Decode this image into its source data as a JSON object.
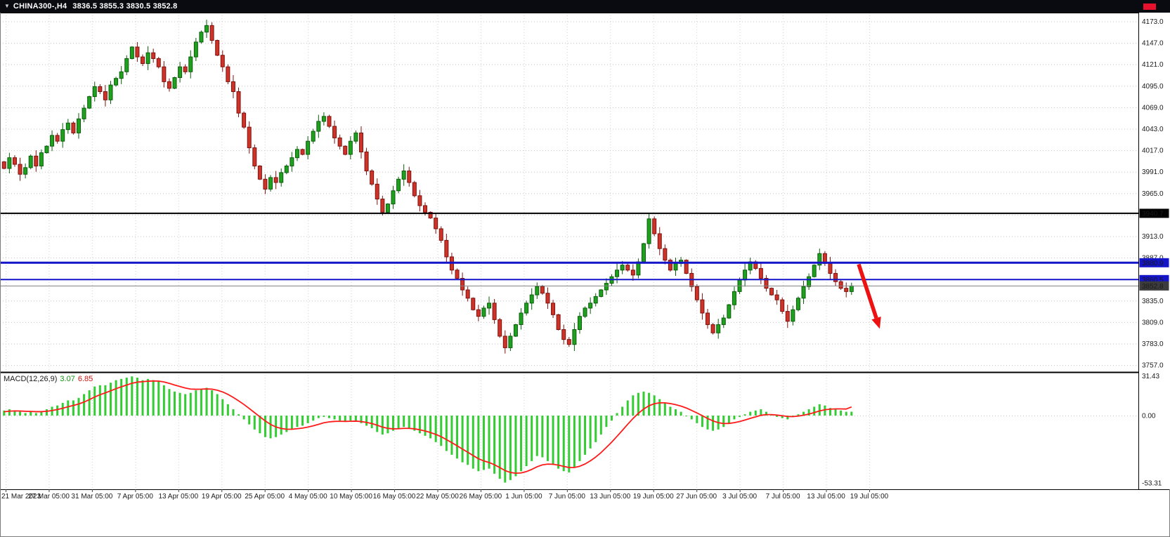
{
  "header": {
    "symbol_period": "CHINA300-,H4",
    "ohlc": "3836.5 3855.3 3830.5 3852.8"
  },
  "macd_header": {
    "name": "MACD(12,26,9)",
    "value_main": "3.07",
    "value_signal": "6.85"
  },
  "colors": {
    "bull": "#1fa11f",
    "bull_stroke": "#0a5d0a",
    "bear": "#cd3328",
    "bear_stroke": "#7e120e",
    "grid": "#c4c4c4",
    "vgrid": "#d2d2d2",
    "hist": "#33cc33",
    "signal": "#ff1a1a",
    "arrow": "#ee1111",
    "axis_text": "#333333",
    "badge_text": "#ffffff",
    "border": "#000000"
  },
  "chart_data": [
    {
      "type": "candlestick",
      "symbol": "CHINA300-",
      "period": "H4",
      "ohlc_display": {
        "open": 3836.5,
        "high": 3855.3,
        "low": 3830.5,
        "close": 3852.8
      },
      "ylim": [
        3748.6,
        4183.6
      ],
      "grid": {
        "max": 4173,
        "min": 3757,
        "step": 26
      },
      "y_tick_values": [
        4173,
        4147,
        4121,
        4095,
        4069,
        4043,
        4017,
        3991,
        3965,
        3913,
        3887,
        3835,
        3809,
        3783,
        3757
      ],
      "y_decimals": 1,
      "x_ticks": [
        "21 Mar 2023",
        "27 Mar 05:00",
        "31 Mar 05:00",
        "7 Apr 05:00",
        "13 Apr 05:00",
        "19 Apr 05:00",
        "25 Apr 05:00",
        "4 May 05:00",
        "10 May 05:00",
        "16 May 05:00",
        "22 May 05:00",
        "26 May 05:00",
        "1 Jun 05:00",
        "7 Jun 05:00",
        "13 Jun 05:00",
        "19 Jun 05:00",
        "27 Jun 05:00",
        "3 Jul 05:00",
        "7 Jul 05:00",
        "13 Jul 05:00",
        "19 Jul 05:00"
      ],
      "closes": [
        3995,
        4008,
        4000,
        3988,
        3996,
        4010,
        3998,
        4014,
        4022,
        4035,
        4028,
        4042,
        4050,
        4038,
        4055,
        4068,
        4082,
        4094,
        4088,
        4078,
        4096,
        4104,
        4112,
        4128,
        4142,
        4130,
        4122,
        4135,
        4128,
        4118,
        4100,
        4092,
        4105,
        4118,
        4112,
        4130,
        4148,
        4160,
        4168,
        4150,
        4132,
        4118,
        4100,
        4088,
        4062,
        4045,
        4020,
        3998,
        3982,
        3970,
        3984,
        3978,
        3990,
        3998,
        4008,
        4018,
        4012,
        4028,
        4040,
        4052,
        4058,
        4046,
        4032,
        4022,
        4012,
        4028,
        4038,
        4015,
        3992,
        3976,
        3958,
        3942,
        3952,
        3968,
        3982,
        3992,
        3978,
        3962,
        3950,
        3942,
        3935,
        3922,
        3908,
        3888,
        3872,
        3862,
        3848,
        3838,
        3824,
        3816,
        3826,
        3832,
        3812,
        3792,
        3778,
        3792,
        3806,
        3820,
        3832,
        3842,
        3852,
        3844,
        3832,
        3818,
        3800,
        3788,
        3782,
        3800,
        3816,
        3826,
        3832,
        3840,
        3848,
        3856,
        3864,
        3872,
        3878,
        3872,
        3866,
        3882,
        3904,
        3934,
        3916,
        3898,
        3884,
        3872,
        3880,
        3884,
        3868,
        3852,
        3836,
        3820,
        3806,
        3796,
        3806,
        3814,
        3830,
        3846,
        3860,
        3872,
        3882,
        3874,
        3862,
        3850,
        3842,
        3836,
        3822,
        3810,
        3824,
        3838,
        3852,
        3864,
        3878,
        3892,
        3880,
        3868,
        3858,
        3850,
        3846,
        3852.8
      ],
      "levels": [
        {
          "value": 3940.7,
          "color": "#000000",
          "width": 2,
          "badge_bg": "#000000"
        },
        {
          "value": 3880.9,
          "color": "#1414c8",
          "width": 3,
          "badge_bg": "#1414c8"
        },
        {
          "value": 3860.5,
          "color": "#1414c8",
          "width": 2,
          "badge_bg": "#1414c8"
        },
        {
          "value": 3852.8,
          "color": "#808080",
          "width": 1,
          "badge_bg": "#3c3c3c"
        }
      ],
      "arrow": {
        "x_from": 1222,
        "price_from": 3879,
        "x_to": 1252,
        "price_to": 3801
      }
    },
    {
      "type": "bar",
      "title": "MACD(12,26,9)",
      "legend_values": [
        "3.07",
        "6.85"
      ],
      "ylim": [
        -58.3,
        33.9
      ],
      "y_ticks": [
        31.43,
        0,
        -53.31
      ],
      "y_decimals": 2,
      "histogram": [
        4,
        5,
        4,
        3,
        2,
        3,
        2,
        3,
        5,
        7,
        8,
        10,
        12,
        12,
        14,
        17,
        20,
        23,
        24,
        24,
        26,
        28,
        29,
        30,
        31,
        30,
        28,
        29,
        28,
        27,
        24,
        21,
        19,
        18,
        17,
        18,
        20,
        21,
        22,
        20,
        17,
        13,
        9,
        5,
        1,
        -3,
        -7,
        -11,
        -14,
        -17,
        -18,
        -17,
        -15,
        -13,
        -11,
        -9,
        -8,
        -6,
        -4,
        -2,
        -1,
        -2,
        -3,
        -4,
        -5,
        -4,
        -4,
        -6,
        -8,
        -10,
        -13,
        -15,
        -14,
        -12,
        -10,
        -9,
        -10,
        -12,
        -14,
        -16,
        -18,
        -21,
        -24,
        -28,
        -31,
        -34,
        -37,
        -39,
        -42,
        -44,
        -43,
        -42,
        -46,
        -50,
        -53,
        -51,
        -48,
        -44,
        -40,
        -36,
        -32,
        -33,
        -36,
        -39,
        -42,
        -44,
        -45,
        -41,
        -36,
        -31,
        -26,
        -21,
        -15,
        -9,
        -4,
        2,
        7,
        12,
        16,
        18,
        19,
        18,
        16,
        13,
        10,
        7,
        5,
        3,
        0,
        -3,
        -6,
        -9,
        -11,
        -12,
        -11,
        -9,
        -6,
        -3,
        -1,
        1,
        3,
        4,
        5,
        3,
        1,
        -1,
        -2,
        -3,
        -1,
        1,
        3,
        5,
        7,
        9,
        8,
        6,
        5,
        4,
        3,
        3.07
      ],
      "signal": [
        3,
        3.5,
        3.7,
        3.6,
        3.4,
        3.3,
        3.1,
        3.1,
        3.4,
        4,
        4.8,
        5.8,
        7,
        8,
        9.2,
        10.7,
        12.6,
        14.7,
        16.5,
        18,
        19.6,
        21.3,
        22.8,
        24.2,
        25.6,
        26.5,
        26.8,
        27.2,
        27.4,
        27.3,
        26.6,
        25.5,
        24.2,
        23,
        21.8,
        21,
        20.8,
        20.9,
        21.1,
        20.9,
        20.1,
        18.7,
        16.8,
        14.4,
        11.7,
        8.8,
        5.6,
        2.3,
        -1,
        -4.2,
        -7,
        -9,
        -10.2,
        -10.8,
        -10.8,
        -10.4,
        -9.9,
        -9.1,
        -8.1,
        -6.9,
        -5.7,
        -5,
        -4.6,
        -4.5,
        -4.6,
        -4.5,
        -4.4,
        -4.7,
        -5.4,
        -6.3,
        -7.6,
        -9.1,
        -10.1,
        -10.5,
        -10.4,
        -10.1,
        -10.1,
        -10.5,
        -11.2,
        -12.2,
        -13.4,
        -14.9,
        -16.7,
        -19,
        -21.4,
        -23.9,
        -26.5,
        -29,
        -31.6,
        -34.1,
        -35.9,
        -37.1,
        -38.9,
        -41.1,
        -43.5,
        -45,
        -45.6,
        -45.4,
        -44.3,
        -42.6,
        -40.5,
        -39,
        -38.4,
        -38.5,
        -39.2,
        -40.2,
        -41.1,
        -41.1,
        -40.1,
        -38.3,
        -35.8,
        -32.8,
        -29.3,
        -25.2,
        -21,
        -16.4,
        -11.7,
        -6.9,
        -2.3,
        1.8,
        5.2,
        7.8,
        9.4,
        10.1,
        10.1,
        9.5,
        8.6,
        7.5,
        6,
        4.1,
        2.1,
        -0.1,
        -2.3,
        -4.2,
        -5.6,
        -6.3,
        -6.2,
        -5.6,
        -4.7,
        -3.5,
        -2.2,
        -1,
        0.2,
        0.8,
        0.8,
        0.4,
        -0.1,
        -0.7,
        -0.8,
        -0.4,
        0.3,
        1.2,
        2.4,
        3.7,
        4.6,
        5.1,
        5.3,
        5.3,
        5.2,
        6.85
      ]
    }
  ]
}
